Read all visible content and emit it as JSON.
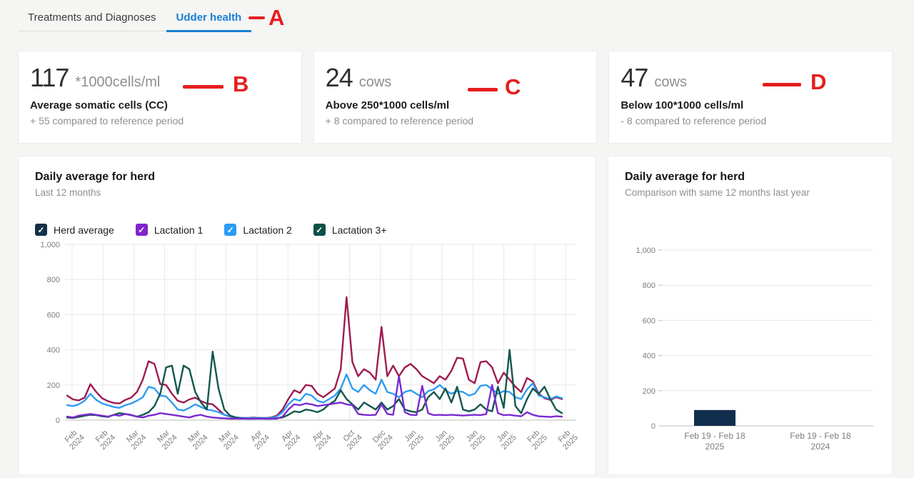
{
  "tabs": {
    "treatments_label": "Treatments and Diagnoses",
    "udder_label": "Udder health"
  },
  "annotations": {
    "a": "A",
    "b": "B",
    "c": "C",
    "d": "D"
  },
  "stats": [
    {
      "value": "117",
      "unit": "*1000cells/ml",
      "label": "Average somatic cells (CC)",
      "delta": "+ 55 compared to reference period"
    },
    {
      "value": "24",
      "unit": "cows",
      "label": "Above 250*1000 cells/ml",
      "delta": "+ 8 compared to reference period"
    },
    {
      "value": "47",
      "unit": "cows",
      "label": "Below 100*1000 cells/ml",
      "delta": "- 8 compared to reference period"
    }
  ],
  "line_card": {
    "title": "Daily average for herd",
    "subtitle": "Last 12 months"
  },
  "bar_card": {
    "title": "Daily average for herd",
    "subtitle": "Comparison with same 12 months last year"
  },
  "legend": [
    {
      "label": "Herd average",
      "checkbox_color": "#16304a",
      "checked": true
    },
    {
      "label": "Lactation 1",
      "checkbox_color": "#8224c9",
      "checked": true
    },
    {
      "label": "Lactation 2",
      "checkbox_color": "#2a9df4",
      "checked": true
    },
    {
      "label": "Lactation 3+",
      "checkbox_color": "#0c5148",
      "checked": true
    }
  ],
  "check_glyph": "✓",
  "chart_data": [
    {
      "type": "line",
      "title": "Daily average for herd",
      "subtitle": "Last 12 months",
      "ylim": [
        0,
        1000
      ],
      "y_tick_labels": [
        "0",
        "200",
        "400",
        "600",
        "800",
        "1,000"
      ],
      "y_ticks": [
        0,
        200,
        400,
        600,
        800,
        1000
      ],
      "grid": true,
      "x_tick_labels": [
        [
          "Feb",
          "2024"
        ],
        [
          "Feb",
          "2024"
        ],
        [
          "Mar",
          "2024"
        ],
        [
          "Mar",
          "2024"
        ],
        [
          "Mar",
          "2024"
        ],
        [
          "Mar",
          "2024"
        ],
        [
          "Apr",
          "2024"
        ],
        [
          "Apr",
          "2024"
        ],
        [
          "Apr",
          "2024"
        ],
        [
          "Oct",
          "2024"
        ],
        [
          "Dec",
          "2024"
        ],
        [
          "Jan",
          "2025"
        ],
        [
          "Jan",
          "2025"
        ],
        [
          "Jan",
          "2025"
        ],
        [
          "Jan",
          "2025"
        ],
        [
          "Feb",
          "2025"
        ],
        [
          "Feb",
          "2025"
        ]
      ],
      "series": [
        {
          "name": "Herd average",
          "color": "#9e1b50",
          "values": [
            140,
            118,
            112,
            128,
            205,
            160,
            125,
            108,
            98,
            95,
            115,
            128,
            160,
            230,
            335,
            320,
            205,
            200,
            150,
            110,
            100,
            118,
            128,
            108,
            95,
            90,
            60,
            30,
            20,
            15,
            12,
            12,
            15,
            12,
            12,
            15,
            25,
            60,
            120,
            170,
            155,
            200,
            195,
            150,
            130,
            155,
            180,
            290,
            700,
            330,
            250,
            290,
            270,
            230,
            530,
            250,
            310,
            250,
            300,
            320,
            290,
            250,
            230,
            210,
            250,
            230,
            280,
            355,
            350,
            230,
            210,
            330,
            335,
            300,
            210,
            270,
            230,
            190,
            160,
            240,
            220,
            150,
            125,
            115,
            130,
            120
          ]
        },
        {
          "name": "Lactation 2",
          "color": "#2e9cf4",
          "values": [
            85,
            80,
            90,
            110,
            150,
            115,
            95,
            85,
            75,
            70,
            85,
            95,
            110,
            130,
            190,
            180,
            140,
            135,
            100,
            60,
            55,
            70,
            90,
            75,
            60,
            55,
            45,
            30,
            22,
            16,
            13,
            12,
            13,
            12,
            12,
            13,
            20,
            45,
            90,
            120,
            110,
            150,
            140,
            110,
            100,
            120,
            140,
            180,
            260,
            180,
            160,
            200,
            170,
            150,
            230,
            160,
            150,
            130,
            160,
            170,
            150,
            130,
            165,
            175,
            200,
            170,
            150,
            165,
            160,
            140,
            150,
            195,
            200,
            175,
            150,
            165,
            160,
            130,
            120,
            175,
            210,
            140,
            130,
            120,
            135,
            125
          ]
        },
        {
          "name": "Lactation 3+",
          "color": "#11584e",
          "values": [
            15,
            12,
            18,
            25,
            30,
            28,
            22,
            18,
            30,
            40,
            35,
            28,
            20,
            30,
            45,
            80,
            150,
            300,
            310,
            150,
            310,
            290,
            160,
            100,
            60,
            390,
            180,
            60,
            25,
            15,
            10,
            8,
            8,
            10,
            8,
            8,
            10,
            15,
            30,
            50,
            45,
            60,
            55,
            45,
            60,
            90,
            110,
            170,
            120,
            90,
            60,
            100,
            80,
            60,
            100,
            60,
            80,
            120,
            60,
            50,
            45,
            60,
            130,
            160,
            120,
            180,
            100,
            190,
            60,
            50,
            60,
            90,
            60,
            50,
            190,
            70,
            400,
            80,
            40,
            120,
            180,
            150,
            190,
            120,
            60,
            40
          ]
        },
        {
          "name": "Lactation 1",
          "color": "#7a2ad1",
          "values": [
            20,
            15,
            25,
            30,
            35,
            30,
            25,
            20,
            30,
            25,
            35,
            30,
            20,
            15,
            25,
            30,
            40,
            35,
            30,
            25,
            20,
            15,
            25,
            30,
            20,
            15,
            12,
            10,
            8,
            8,
            8,
            8,
            8,
            8,
            8,
            8,
            8,
            20,
            60,
            90,
            85,
            95,
            90,
            80,
            85,
            90,
            95,
            100,
            90,
            85,
            35,
            30,
            28,
            30,
            90,
            35,
            30,
            250,
            45,
            30,
            28,
            195,
            40,
            28,
            30,
            28,
            30,
            28,
            26,
            28,
            30,
            28,
            35,
            200,
            40,
            28,
            30,
            25,
            22,
            45,
            30,
            22,
            20,
            18,
            22,
            20
          ]
        }
      ]
    },
    {
      "type": "bar",
      "title": "Daily average for herd",
      "subtitle": "Comparison with same 12 months last year",
      "ylim": [
        0,
        1000
      ],
      "y_tick_labels": [
        "0",
        "200",
        "400",
        "600",
        "800",
        "1,000"
      ],
      "y_ticks": [
        0,
        200,
        400,
        600,
        800,
        1000
      ],
      "grid": true,
      "categories": [
        [
          "Feb 19 - Feb 18",
          "2025"
        ],
        [
          "Feb 19 - Feb 18",
          "2024"
        ]
      ],
      "values": [
        90,
        0
      ],
      "bar_color": "#122e4e"
    }
  ],
  "colors": {
    "tab_active": "#1a7fd5",
    "annotation_red": "#e61e1e",
    "grid_line": "#e8e8e7",
    "axis_line": "#bdbdbb",
    "tick_text": "#7d7d7b"
  }
}
